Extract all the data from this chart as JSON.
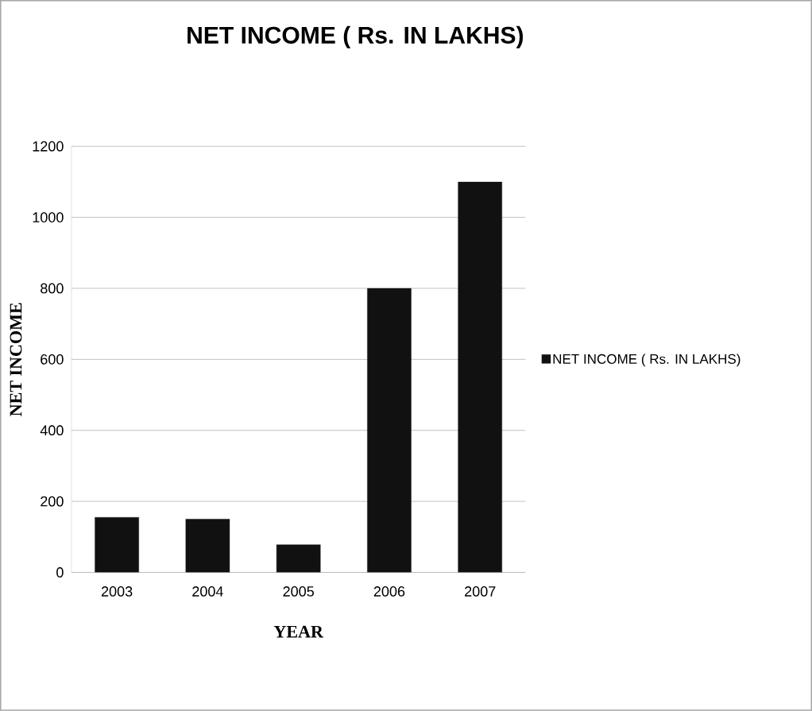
{
  "chart_data": {
    "type": "bar",
    "title": "NET INCOME ( Rs. IN LAKHS)",
    "xlabel": "YEAR",
    "ylabel": "NET INCOME",
    "categories": [
      "2003",
      "2004",
      "2005",
      "2006",
      "2007"
    ],
    "series": [
      {
        "name": "NET INCOME ( Rs. IN LAKHS)",
        "color": "#111111",
        "values": [
          155,
          150,
          78,
          800,
          1100
        ]
      }
    ],
    "ylim": [
      0,
      1200
    ],
    "yticks": [
      0,
      200,
      400,
      600,
      800,
      1000,
      1200
    ],
    "grid": "y",
    "legend": "right"
  }
}
